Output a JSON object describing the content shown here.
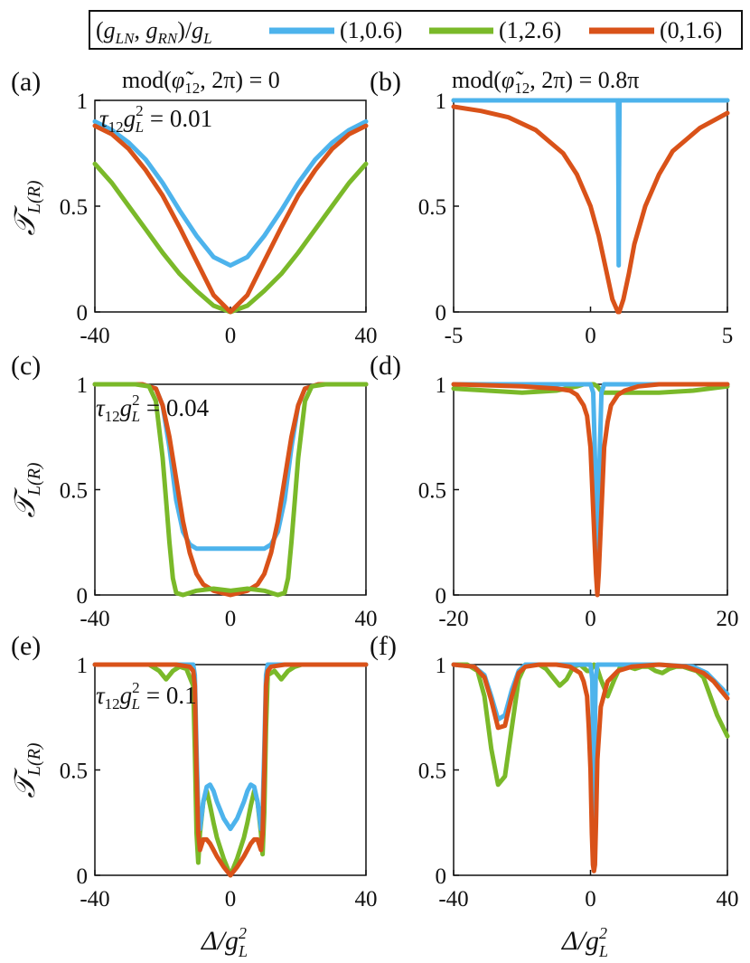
{
  "colors": {
    "blue": "#4db3ec",
    "green": "#7ab929",
    "orange": "#d95219",
    "axis": "#111111"
  },
  "legend": {
    "title": "(g_LN, g_RN)/g_L",
    "entries": [
      {
        "label": "(1,0.6)",
        "color": "#4db3ec"
      },
      {
        "label": "(1,2.6)",
        "color": "#7ab929"
      },
      {
        "label": "(0,1.6)",
        "color": "#d95219"
      }
    ]
  },
  "column_titles": [
    "mod(φ̃₁₂, 2π) = 0",
    "mod(φ̃₁₂, 2π) = 0.8π"
  ],
  "ylabel": "𝒯L(R)",
  "xlabel": "Δ/g²L",
  "chart_data": [
    {
      "id": "a",
      "type": "line",
      "label": "(a)",
      "annotation": "τ₁₂g²L = 0.01",
      "xlim": [
        -40,
        40
      ],
      "ylim": [
        0,
        1
      ],
      "xticks": [
        "-40",
        "0",
        "40"
      ],
      "yticks": [
        "0",
        "0.5",
        "1"
      ],
      "series": [
        {
          "name": "(1,0.6)",
          "color": "#4db3ec",
          "x": [
            -40,
            -35,
            -30,
            -25,
            -20,
            -15,
            -10,
            -5,
            0,
            5,
            10,
            15,
            20,
            25,
            30,
            35,
            40
          ],
          "y": [
            0.9,
            0.86,
            0.8,
            0.72,
            0.61,
            0.48,
            0.36,
            0.26,
            0.22,
            0.26,
            0.36,
            0.48,
            0.61,
            0.72,
            0.8,
            0.86,
            0.9
          ]
        },
        {
          "name": "(1,2.6)",
          "color": "#7ab929",
          "x": [
            -40,
            -35,
            -30,
            -25,
            -20,
            -15,
            -10,
            -5,
            0,
            5,
            10,
            15,
            20,
            25,
            30,
            35,
            40
          ],
          "y": [
            0.7,
            0.61,
            0.5,
            0.39,
            0.28,
            0.18,
            0.1,
            0.03,
            0.0,
            0.03,
            0.1,
            0.18,
            0.28,
            0.39,
            0.5,
            0.61,
            0.7
          ]
        },
        {
          "name": "(0,1.6)",
          "color": "#d95219",
          "x": [
            -40,
            -35,
            -30,
            -25,
            -20,
            -15,
            -10,
            -5,
            0,
            5,
            10,
            15,
            20,
            25,
            30,
            35,
            40
          ],
          "y": [
            0.88,
            0.84,
            0.77,
            0.67,
            0.55,
            0.4,
            0.24,
            0.08,
            0.0,
            0.08,
            0.24,
            0.4,
            0.55,
            0.67,
            0.77,
            0.84,
            0.88
          ]
        }
      ]
    },
    {
      "id": "b",
      "type": "line",
      "label": "(b)",
      "annotation": "",
      "xlim": [
        -5,
        5
      ],
      "ylim": [
        0,
        1
      ],
      "xticks": [
        "-5",
        "0",
        "5"
      ],
      "yticks": [
        "0",
        "0.5",
        "1"
      ],
      "series": [
        {
          "name": "(1,2.6)",
          "color": "#7ab929",
          "x": [
            -5,
            5
          ],
          "y": [
            1.0,
            1.0
          ]
        },
        {
          "name": "(1,0.6)",
          "color": "#4db3ec",
          "x": [
            -5,
            1.0,
            1.02,
            1.03,
            1.04,
            1.06,
            5
          ],
          "y": [
            1.0,
            1.0,
            0.6,
            0.22,
            0.6,
            1.0,
            1.0
          ]
        },
        {
          "name": "(0,1.6)",
          "color": "#d95219",
          "x": [
            -5,
            -4,
            -3,
            -2,
            -1,
            -0.5,
            0,
            0.3,
            0.6,
            0.8,
            1.0,
            1.05,
            1.2,
            1.4,
            1.6,
            2,
            2.5,
            3,
            4,
            5
          ],
          "y": [
            0.97,
            0.95,
            0.92,
            0.86,
            0.75,
            0.65,
            0.5,
            0.36,
            0.18,
            0.06,
            0.0,
            0.0,
            0.06,
            0.18,
            0.32,
            0.5,
            0.65,
            0.76,
            0.87,
            0.94
          ]
        }
      ]
    },
    {
      "id": "c",
      "type": "line",
      "label": "(c)",
      "annotation": "τ₁₂g²L = 0.04",
      "xlim": [
        -40,
        40
      ],
      "ylim": [
        0,
        1
      ],
      "xticks": [
        "-40",
        "0",
        "40"
      ],
      "yticks": [
        "0",
        "0.5",
        "1"
      ],
      "series": [
        {
          "name": "(1,0.6)",
          "color": "#4db3ec",
          "x": [
            -40,
            -26,
            -22,
            -20,
            -18,
            -16,
            -14,
            -12,
            -10,
            0,
            10,
            12,
            14,
            16,
            18,
            20,
            22,
            26,
            40
          ],
          "y": [
            1.0,
            1.0,
            0.98,
            0.9,
            0.7,
            0.45,
            0.3,
            0.24,
            0.22,
            0.22,
            0.22,
            0.24,
            0.3,
            0.45,
            0.7,
            0.9,
            0.98,
            1.0,
            1.0
          ]
        },
        {
          "name": "(0,1.6)",
          "color": "#d95219",
          "x": [
            -40,
            -26,
            -22,
            -20,
            -18,
            -16,
            -14,
            -12,
            -10,
            -8,
            -5,
            0,
            5,
            8,
            10,
            12,
            14,
            16,
            18,
            20,
            22,
            26,
            40
          ],
          "y": [
            1.0,
            1.0,
            0.98,
            0.9,
            0.75,
            0.55,
            0.35,
            0.2,
            0.1,
            0.05,
            0.02,
            0.0,
            0.02,
            0.05,
            0.1,
            0.2,
            0.35,
            0.55,
            0.75,
            0.9,
            0.98,
            1.0,
            1.0
          ]
        },
        {
          "name": "(1,2.6)",
          "color": "#7ab929",
          "x": [
            -40,
            -28,
            -24,
            -22,
            -20,
            -19,
            -18,
            -17,
            -16,
            -14,
            -10,
            -5,
            0,
            5,
            10,
            14,
            16,
            17,
            18,
            19,
            20,
            22,
            24,
            28,
            40
          ],
          "y": [
            1.0,
            1.0,
            0.99,
            0.92,
            0.65,
            0.45,
            0.25,
            0.08,
            0.01,
            0.0,
            0.02,
            0.03,
            0.02,
            0.03,
            0.02,
            0.0,
            0.01,
            0.08,
            0.25,
            0.45,
            0.65,
            0.92,
            0.99,
            1.0,
            1.0
          ]
        }
      ]
    },
    {
      "id": "d",
      "type": "line",
      "label": "(d)",
      "annotation": "",
      "xlim": [
        -20,
        20
      ],
      "ylim": [
        0,
        1
      ],
      "xticks": [
        "-20",
        "0",
        "20"
      ],
      "yticks": [
        "0",
        "0.5",
        "1"
      ],
      "series": [
        {
          "name": "(1,2.6)",
          "color": "#7ab929",
          "x": [
            -20,
            -15,
            -10,
            -5,
            -2,
            -1,
            0,
            0.5,
            1,
            1.5,
            2,
            5,
            8,
            10,
            15,
            20
          ],
          "y": [
            0.98,
            0.97,
            0.96,
            0.97,
            0.99,
            1.0,
            1.0,
            1.0,
            0.99,
            0.97,
            0.96,
            0.96,
            0.96,
            0.96,
            0.97,
            0.99
          ]
        },
        {
          "name": "(1,0.6)",
          "color": "#4db3ec",
          "x": [
            -20,
            0,
            0.4,
            0.7,
            1.0,
            1.3,
            1.6,
            2,
            20
          ],
          "y": [
            1.0,
            1.0,
            0.96,
            0.6,
            0.04,
            0.6,
            0.96,
            1.0,
            1.0
          ]
        },
        {
          "name": "(0,1.6)",
          "color": "#d95219",
          "x": [
            -20,
            -10,
            -5,
            -3,
            -2,
            -1,
            -0.5,
            0,
            0.4,
            0.8,
            1.0,
            1.2,
            1.6,
            2,
            2.5,
            3,
            4,
            5,
            7,
            10,
            20
          ],
          "y": [
            1.0,
            0.99,
            0.98,
            0.97,
            0.95,
            0.9,
            0.85,
            0.7,
            0.4,
            0.1,
            0.0,
            0.1,
            0.4,
            0.7,
            0.82,
            0.9,
            0.95,
            0.97,
            0.99,
            1.0,
            1.0
          ]
        }
      ]
    },
    {
      "id": "e",
      "type": "line",
      "label": "(e)",
      "annotation": "τ₁₂g²L = 0.1",
      "xlim": [
        -40,
        40
      ],
      "ylim": [
        0,
        1
      ],
      "xticks": [
        "-40",
        "0",
        "40"
      ],
      "yticks": [
        "0",
        "0.5",
        "1"
      ],
      "series": [
        {
          "name": "(1,2.6)",
          "color": "#7ab929",
          "x": [
            -40,
            -24,
            -21,
            -19,
            -17,
            -15,
            -13,
            -11,
            -10.5,
            -10,
            -9.5,
            -9,
            -8,
            -7,
            -6,
            -5,
            -4,
            -2,
            0,
            2,
            4,
            5,
            6,
            7,
            8,
            9,
            9.5,
            10,
            10.5,
            11,
            13,
            15,
            17,
            19,
            21,
            24,
            40
          ],
          "y": [
            1.0,
            1.0,
            0.97,
            0.93,
            0.97,
            0.99,
            0.98,
            0.9,
            0.6,
            0.2,
            0.06,
            0.2,
            0.35,
            0.4,
            0.33,
            0.25,
            0.18,
            0.08,
            0.0,
            0.08,
            0.18,
            0.25,
            0.33,
            0.4,
            0.35,
            0.2,
            0.1,
            0.3,
            0.7,
            0.95,
            0.97,
            0.93,
            0.97,
            0.99,
            1.0,
            1.0,
            1.0
          ]
        },
        {
          "name": "(1,0.6)",
          "color": "#4db3ec",
          "x": [
            -40,
            -11,
            -10.5,
            -10,
            -9.5,
            -9,
            -8,
            -7,
            -6,
            -5,
            -4,
            -2,
            0,
            2,
            4,
            5,
            6,
            7,
            8,
            9,
            9.5,
            10,
            10.5,
            11,
            40
          ],
          "y": [
            1.0,
            1.0,
            0.95,
            0.6,
            0.3,
            0.22,
            0.35,
            0.42,
            0.43,
            0.4,
            0.35,
            0.27,
            0.22,
            0.27,
            0.35,
            0.4,
            0.43,
            0.42,
            0.35,
            0.22,
            0.3,
            0.6,
            0.95,
            1.0,
            1.0
          ]
        },
        {
          "name": "(0,1.6)",
          "color": "#d95219",
          "x": [
            -40,
            -16,
            -12,
            -11,
            -10.5,
            -10,
            -9.5,
            -9,
            -8,
            -7,
            -6,
            -5,
            -4,
            -2,
            0,
            2,
            4,
            5,
            6,
            7,
            8,
            9,
            9.5,
            10,
            10.5,
            11,
            12,
            16,
            40
          ],
          "y": [
            1.0,
            1.0,
            0.99,
            0.97,
            0.9,
            0.5,
            0.2,
            0.12,
            0.17,
            0.17,
            0.15,
            0.12,
            0.09,
            0.04,
            0.0,
            0.04,
            0.09,
            0.12,
            0.15,
            0.17,
            0.17,
            0.12,
            0.2,
            0.5,
            0.9,
            0.97,
            0.99,
            1.0,
            1.0
          ]
        }
      ]
    },
    {
      "id": "f",
      "type": "line",
      "label": "(f)",
      "annotation": "",
      "xlim": [
        -40,
        40
      ],
      "ylim": [
        0,
        1
      ],
      "xticks": [
        "-40",
        "0",
        "40"
      ],
      "yticks": [
        "0",
        "0.5",
        "1"
      ],
      "series": [
        {
          "name": "(1,2.6)",
          "color": "#7ab929",
          "x": [
            -40,
            -36,
            -33,
            -31,
            -29,
            -27,
            -25,
            -23,
            -21,
            -19,
            -17,
            -15,
            -13,
            -11,
            -9,
            -7,
            -5,
            -3,
            -1,
            0,
            1,
            2,
            3,
            5,
            7,
            9,
            11,
            13,
            15,
            17,
            19,
            21,
            23,
            25,
            27,
            29,
            31,
            33,
            35,
            37,
            40
          ],
          "y": [
            1.0,
            1.0,
            0.97,
            0.85,
            0.6,
            0.43,
            0.47,
            0.7,
            0.93,
            1.0,
            1.0,
            1.0,
            0.98,
            0.94,
            0.9,
            0.93,
            0.99,
            1.0,
            0.97,
            0.97,
            1.0,
            0.98,
            0.93,
            0.85,
            0.93,
            1.0,
            0.99,
            0.98,
            0.99,
            0.99,
            0.97,
            0.96,
            0.98,
            0.99,
            0.99,
            0.98,
            0.97,
            0.94,
            0.85,
            0.76,
            0.66
          ]
        },
        {
          "name": "(1,0.6)",
          "color": "#4db3ec",
          "x": [
            -40,
            -34,
            -31,
            -29,
            -27,
            -25,
            -23,
            -21,
            -19,
            -15,
            -5,
            -1,
            0,
            0.5,
            0.8,
            1.0,
            1.2,
            1.5,
            2,
            3,
            5,
            10,
            20,
            30,
            34,
            37,
            40
          ],
          "y": [
            1.0,
            0.99,
            0.95,
            0.85,
            0.74,
            0.76,
            0.88,
            0.97,
            1.0,
            1.0,
            1.0,
            1.0,
            1.0,
            0.93,
            0.6,
            0.05,
            0.6,
            0.93,
            1.0,
            1.0,
            1.0,
            1.0,
            1.0,
            0.99,
            0.96,
            0.91,
            0.86
          ]
        },
        {
          "name": "(0,1.6)",
          "color": "#d95219",
          "x": [
            -40,
            -34,
            -31,
            -29,
            -27,
            -25,
            -23,
            -21,
            -19,
            -15,
            -10,
            -6,
            -3,
            -2,
            -1,
            -0.5,
            0,
            0.4,
            0.7,
            0.9,
            1.0,
            1.1,
            1.3,
            1.6,
            2,
            3,
            5,
            8,
            12,
            20,
            28,
            33,
            36,
            38,
            40
          ],
          "y": [
            1.0,
            0.99,
            0.94,
            0.83,
            0.7,
            0.71,
            0.85,
            0.96,
            0.99,
            1.0,
            1.0,
            0.99,
            0.96,
            0.92,
            0.85,
            0.7,
            0.5,
            0.2,
            0.05,
            0.03,
            0.02,
            0.03,
            0.05,
            0.25,
            0.55,
            0.8,
            0.92,
            0.97,
            0.99,
            1.0,
            0.99,
            0.96,
            0.92,
            0.88,
            0.84
          ]
        }
      ]
    }
  ]
}
